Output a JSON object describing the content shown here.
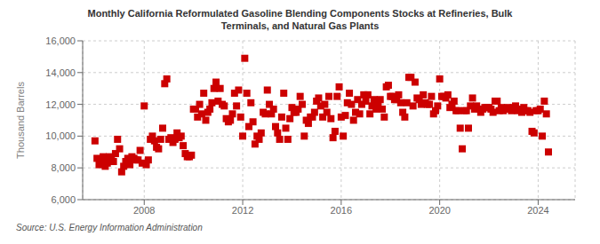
{
  "chart_data": {
    "type": "scatter",
    "title": "Monthly California Reformulated Gasoline Blending Components Stocks at Refineries, Bulk\nTerminals, and Natural Gas Plants",
    "ylabel": "Thousand Barrels",
    "annotations": [
      "Source: U.S. Energy Information Administration"
    ],
    "color": "#cc0000",
    "marker": "square",
    "grid": true,
    "xlim": [
      2005.5,
      2025.5
    ],
    "xticks": [
      2008,
      2012,
      2016,
      2020,
      2024
    ],
    "ylim": [
      6000,
      16000
    ],
    "yticks": [
      {
        "value": 6000,
        "label": "6,000"
      },
      {
        "value": 8000,
        "label": "8,000"
      },
      {
        "value": 10000,
        "label": "10,000"
      },
      {
        "value": 12000,
        "label": "12,000"
      },
      {
        "value": 14000,
        "label": "14,000"
      },
      {
        "value": 16000,
        "label": "16,000"
      }
    ],
    "x": [
      2006.0,
      2006.083,
      2006.167,
      2006.25,
      2006.333,
      2006.417,
      2006.5,
      2006.583,
      2006.667,
      2006.75,
      2006.833,
      2006.917,
      2007.0,
      2007.083,
      2007.167,
      2007.25,
      2007.333,
      2007.417,
      2007.5,
      2007.583,
      2007.667,
      2007.75,
      2007.833,
      2007.917,
      2008.0,
      2008.083,
      2008.167,
      2008.25,
      2008.333,
      2008.417,
      2008.5,
      2008.583,
      2008.667,
      2008.75,
      2008.833,
      2008.917,
      2009.0,
      2009.083,
      2009.167,
      2009.25,
      2009.333,
      2009.417,
      2009.5,
      2009.583,
      2009.667,
      2009.75,
      2009.833,
      2009.917,
      2010.0,
      2010.083,
      2010.167,
      2010.25,
      2010.333,
      2010.417,
      2010.5,
      2010.583,
      2010.667,
      2010.75,
      2010.833,
      2010.917,
      2011.0,
      2011.083,
      2011.167,
      2011.25,
      2011.333,
      2011.417,
      2011.5,
      2011.583,
      2011.667,
      2011.75,
      2011.833,
      2011.917,
      2012.0,
      2012.083,
      2012.167,
      2012.25,
      2012.333,
      2012.417,
      2012.5,
      2012.583,
      2012.667,
      2012.75,
      2012.833,
      2012.917,
      2013.0,
      2013.083,
      2013.167,
      2013.25,
      2013.333,
      2013.417,
      2013.5,
      2013.583,
      2013.667,
      2013.75,
      2013.833,
      2013.917,
      2014.0,
      2014.083,
      2014.167,
      2014.25,
      2014.333,
      2014.417,
      2014.5,
      2014.583,
      2014.667,
      2014.75,
      2014.833,
      2014.917,
      2015.0,
      2015.083,
      2015.167,
      2015.25,
      2015.333,
      2015.417,
      2015.5,
      2015.583,
      2015.667,
      2015.75,
      2015.833,
      2015.917,
      2016.0,
      2016.083,
      2016.167,
      2016.25,
      2016.333,
      2016.417,
      2016.5,
      2016.583,
      2016.667,
      2016.75,
      2016.833,
      2016.917,
      2017.0,
      2017.083,
      2017.167,
      2017.25,
      2017.333,
      2017.417,
      2017.5,
      2017.583,
      2017.667,
      2017.75,
      2017.833,
      2017.917,
      2018.0,
      2018.083,
      2018.167,
      2018.25,
      2018.333,
      2018.417,
      2018.5,
      2018.583,
      2018.667,
      2018.75,
      2018.833,
      2018.917,
      2019.0,
      2019.083,
      2019.167,
      2019.25,
      2019.333,
      2019.417,
      2019.5,
      2019.583,
      2019.667,
      2019.75,
      2019.833,
      2019.917,
      2020.0,
      2020.083,
      2020.167,
      2020.25,
      2020.333,
      2020.417,
      2020.5,
      2020.583,
      2020.667,
      2020.75,
      2020.833,
      2020.917,
      2021.0,
      2021.083,
      2021.167,
      2021.25,
      2021.333,
      2021.417,
      2021.5,
      2021.583,
      2021.667,
      2021.75,
      2021.833,
      2021.917,
      2022.0,
      2022.083,
      2022.167,
      2022.25,
      2022.333,
      2022.417,
      2022.5,
      2022.583,
      2022.667,
      2022.75,
      2022.833,
      2022.917,
      2023.0,
      2023.083,
      2023.167,
      2023.25,
      2023.333,
      2023.417,
      2023.5,
      2023.583,
      2023.667,
      2023.75,
      2023.833,
      2023.917,
      2024.0,
      2024.083,
      2024.167,
      2024.25,
      2024.333,
      2024.417
    ],
    "values": [
      9700,
      8600,
      8200,
      8500,
      8700,
      8100,
      8300,
      8700,
      8600,
      8400,
      8900,
      9800,
      9200,
      7750,
      8100,
      8400,
      8600,
      8200,
      8700,
      8600,
      8500,
      8500,
      9100,
      8300,
      11900,
      8200,
      8500,
      9800,
      10000,
      9700,
      9300,
      9200,
      9800,
      10500,
      13300,
      13600,
      9800,
      9900,
      9600,
      9800,
      10200,
      9900,
      10000,
      9400,
      8900,
      8700,
      8700,
      8800,
      11700,
      11700,
      11200,
      12000,
      11400,
      12700,
      11000,
      11500,
      11700,
      12100,
      13000,
      13400,
      12200,
      13000,
      12000,
      11900,
      11100,
      10900,
      11000,
      11400,
      12700,
      11900,
      12900,
      11200,
      10000,
      14900,
      12700,
      10600,
      12100,
      10900,
      9500,
      10000,
      9800,
      10200,
      11500,
      11400,
      12900,
      12000,
      11400,
      11700,
      10600,
      10200,
      9800,
      11200,
      12700,
      10500,
      9800,
      11100,
      11800,
      11500,
      11500,
      11700,
      12500,
      12000,
      10000,
      11000,
      10800,
      11200,
      11200,
      11500,
      12200,
      12400,
      11900,
      11200,
      12000,
      11500,
      12500,
      11100,
      9900,
      10300,
      12500,
      13100,
      11200,
      10000,
      11300,
      12100,
      12700,
      12000,
      11000,
      11500,
      12300,
      11400,
      12000,
      12600,
      12200,
      12600,
      11400,
      11900,
      12300,
      11700,
      11900,
      12300,
      11700,
      11200,
      13100,
      13200,
      12500,
      12500,
      12300,
      12300,
      12600,
      12100,
      11500,
      11200,
      12100,
      13700,
      13700,
      11900,
      13400,
      12400,
      12300,
      12000,
      12600,
      12100,
      12000,
      12000,
      12500,
      11400,
      11600,
      11900,
      13600,
      12500,
      12500,
      12400,
      12600,
      11800,
      12000,
      12200,
      11600,
      11600,
      10500,
      9200,
      11600,
      11600,
      10500,
      11900,
      12400,
      11700,
      11900,
      11700,
      11500,
      11700,
      11800,
      11800,
      11800,
      11700,
      11500,
      12200,
      12200,
      11600,
      11800,
      11600,
      11700,
      11800,
      11700,
      11600,
      11800,
      11900,
      11600,
      11700,
      11500,
      11800,
      11600,
      11600,
      11500,
      10300,
      10200,
      11600,
      11600,
      11700,
      10000,
      12200,
      11400,
      9000
    ]
  }
}
